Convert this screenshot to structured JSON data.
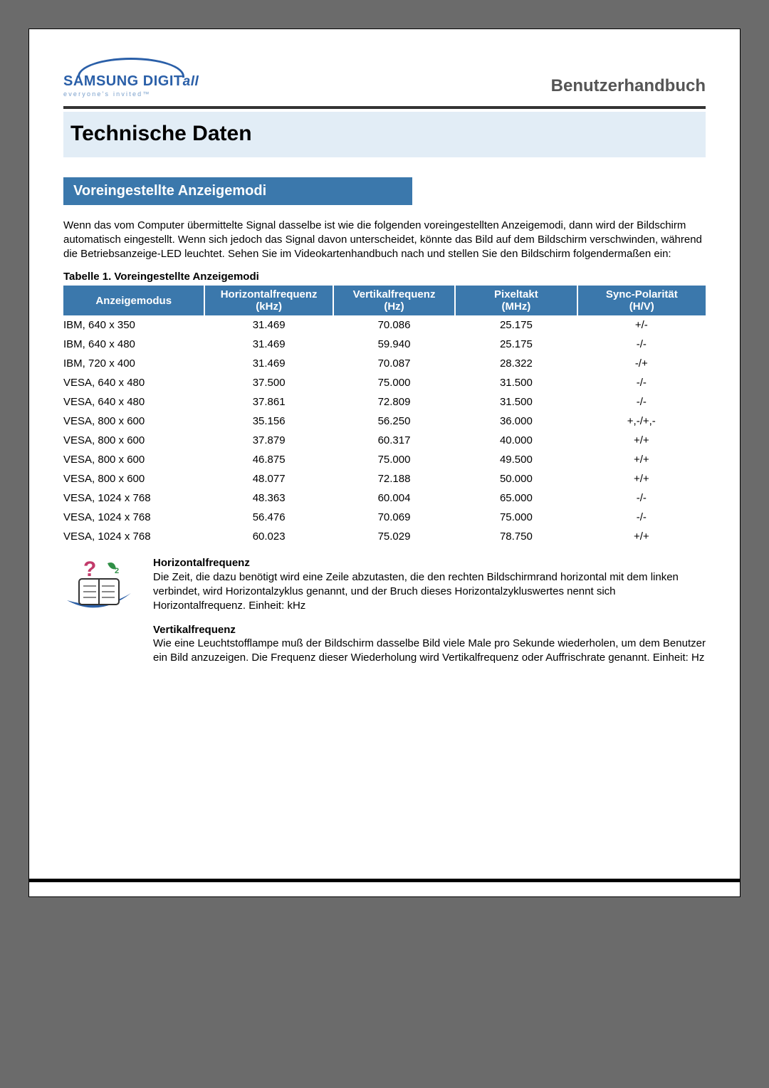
{
  "brand": {
    "name_main": "SAMSUNG DIGIT",
    "name_italic": "all",
    "tagline": "everyone's invited™"
  },
  "header": {
    "doc_title": "Benutzerhandbuch"
  },
  "page_title": "Technische Daten",
  "section_title": "Voreingestellte Anzeigemodi",
  "intro_paragraph": "Wenn das vom Computer übermittelte Signal dasselbe ist wie die folgenden voreingestellten Anzeigemodi, dann wird der Bildschirm automatisch eingestellt. Wenn sich jedoch das Signal davon unterscheidet, könnte das Bild auf dem Bildschirm verschwinden, während die Betriebsanzeige-LED leuchtet. Sehen Sie im Videokartenhandbuch nach und stellen Sie den Bildschirm folgendermaßen ein:",
  "table": {
    "caption": "Tabelle 1. Voreingestellte Anzeigemodi",
    "columns": [
      {
        "title": "Anzeigemodus",
        "sub": "",
        "width": "22%",
        "align": "left"
      },
      {
        "title": "Horizontalfrequenz",
        "sub": "(kHz)",
        "width": "20%",
        "align": "center"
      },
      {
        "title": "Vertikalfrequenz",
        "sub": "(Hz)",
        "width": "19%",
        "align": "center"
      },
      {
        "title": "Pixeltakt",
        "sub": "(MHz)",
        "width": "19%",
        "align": "center"
      },
      {
        "title": "Sync-Polarität",
        "sub": "(H/V)",
        "width": "20%",
        "align": "center"
      }
    ],
    "rows": [
      [
        "IBM, 640 x 350",
        "31.469",
        "70.086",
        "25.175",
        "+/-"
      ],
      [
        "IBM, 640 x 480",
        "31.469",
        "59.940",
        "25.175",
        "-/-"
      ],
      [
        "IBM, 720 x 400",
        "31.469",
        "70.087",
        "28.322",
        "-/+"
      ],
      [
        "VESA, 640 x 480",
        "37.500",
        "75.000",
        "31.500",
        "-/-"
      ],
      [
        "VESA, 640 x 480",
        "37.861",
        "72.809",
        "31.500",
        "-/-"
      ],
      [
        "VESA, 800 x 600",
        "35.156",
        "56.250",
        "36.000",
        "+,-/+,-"
      ],
      [
        "VESA, 800 x 600",
        "37.879",
        "60.317",
        "40.000",
        "+/+"
      ],
      [
        "VESA, 800 x 600",
        "46.875",
        "75.000",
        "49.500",
        "+/+"
      ],
      [
        "VESA, 800 x 600",
        "48.077",
        "72.188",
        "50.000",
        "+/+"
      ],
      [
        "VESA, 1024 x 768",
        "48.363",
        "60.004",
        "65.000",
        "-/-"
      ],
      [
        "VESA, 1024 x 768",
        "56.476",
        "70.069",
        "75.000",
        "-/-"
      ],
      [
        "VESA, 1024 x 768",
        "60.023",
        "75.029",
        "78.750",
        "+/+"
      ]
    ],
    "header_bg": "#3b78ac",
    "header_fg": "#ffffff",
    "row_fontsize": 15
  },
  "definitions": {
    "hf_title": "Horizontalfrequenz",
    "hf_body": "Die Zeit, die dazu benötigt wird eine Zeile abzutasten, die den rechten Bildschirmrand horizontal mit dem linken verbindet, wird Horizontalzyklus genannt, und der Bruch dieses Horizontalzykluswertes nennt sich Horizontalfrequenz. Einheit: kHz",
    "vf_title": "Vertikalfrequenz",
    "vf_body": "Wie eine Leuchtstofflampe muß der Bildschirm dasselbe Bild viele Male pro Sekunde wiederholen, um dem Benutzer ein Bild anzuzeigen. Die Frequenz dieser Wiederholung wird Vertikalfrequenz oder Auffrischrate genannt. Einheit: Hz",
    "icon_colors": {
      "swoosh": "#2b5fa6",
      "book": "#ffffff",
      "qmark": "#c23a6a",
      "leaf": "#2f8f46"
    }
  }
}
